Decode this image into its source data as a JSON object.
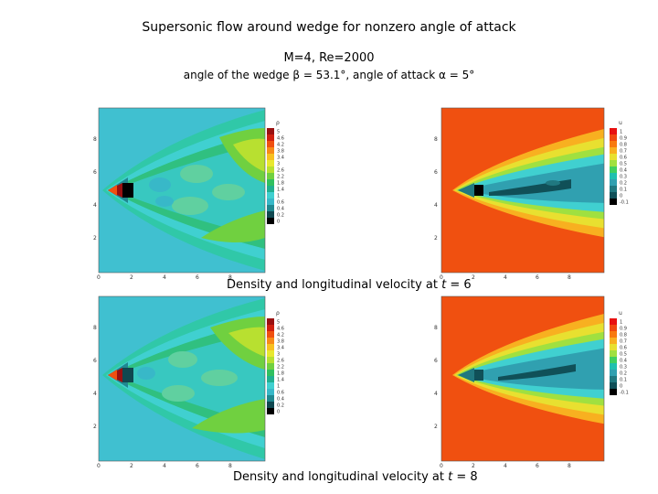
{
  "header": {
    "title": "Supersonic flow around wedge for nonzero angle of attack",
    "params": "M=4,  Re=2000",
    "wedge_info": "angle of the wedge β = 53.1°, angle of attack  α = 5°"
  },
  "captions": {
    "t6_prefix": "Density and longitudinal velocity at ",
    "t8_prefix": "Density and longitudinal velocity at ",
    "t_symbol": "t",
    "t6_value": " = 6",
    "t8_value": " = 8"
  },
  "axes": {
    "x_ticks": [
      "0",
      "2",
      "4",
      "6",
      "8"
    ],
    "y_ticks": [
      "2",
      "4",
      "6",
      "8"
    ]
  },
  "density_legend": {
    "var": "ρ",
    "levels": [
      "5",
      "4.6",
      "4.2",
      "3.8",
      "3.4",
      "3",
      "2.6",
      "2.2",
      "1.8",
      "1.4",
      "1",
      "0.6",
      "0.4",
      "0.2",
      "0"
    ],
    "colors": [
      "#9a1010",
      "#d02010",
      "#f05010",
      "#f78a18",
      "#f8c020",
      "#e8e830",
      "#b8e030",
      "#70d040",
      "#30c060",
      "#20b090",
      "#40d0d0",
      "#38b8c8",
      "#208890",
      "#104850",
      "#000000"
    ]
  },
  "velocity_legend": {
    "var": "u",
    "levels": [
      "1",
      "0.9",
      "0.8",
      "0.7",
      "0.6",
      "0.5",
      "0.4",
      "0.3",
      "0.2",
      "0.1",
      "0",
      "-0.1"
    ],
    "colors": [
      "#e81010",
      "#f04810",
      "#f87a10",
      "#f8b020",
      "#e8e030",
      "#a0e040",
      "#40d060",
      "#20c0b0",
      "#30a0b0",
      "#207880",
      "#105058",
      "#000000"
    ]
  }
}
